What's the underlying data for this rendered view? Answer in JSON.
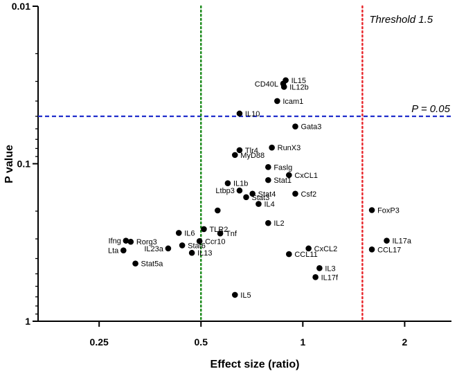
{
  "chart_data": {
    "type": "scatter",
    "xlabel": "Effect size (ratio)",
    "ylabel": "P value",
    "x_scale": "log2",
    "y_scale": "log10",
    "xlim": [
      0.165,
      2.75
    ],
    "ylim": [
      1,
      0.01
    ],
    "x_ticks": [
      {
        "value": 0.25,
        "label": "0.25"
      },
      {
        "value": 0.5,
        "label": "0.5"
      },
      {
        "value": 1,
        "label": "1"
      },
      {
        "value": 2,
        "label": "2"
      }
    ],
    "y_ticks": [
      {
        "value": 0.01,
        "label": "0.01"
      },
      {
        "value": 0.1,
        "label": "0.1"
      },
      {
        "value": 1,
        "label": "1"
      }
    ],
    "reference_lines": [
      {
        "name": "p-threshold",
        "orientation": "horizontal",
        "value": 0.05,
        "color": "#1f2dcc",
        "label": "P = 0.05"
      },
      {
        "name": "effect-threshold",
        "orientation": "vertical",
        "value": 1.5,
        "color": "#e8262b",
        "label": "Threshold 1.5"
      },
      {
        "name": "half-ratio",
        "orientation": "vertical",
        "value": 0.5,
        "color": "#1a8a1a",
        "label": ""
      }
    ],
    "points": [
      {
        "label": "IL15",
        "x": 0.89,
        "y": 0.0295,
        "anchor": "start"
      },
      {
        "label": "CD40L",
        "x": 0.875,
        "y": 0.031,
        "anchor": "end"
      },
      {
        "label": "IL12b",
        "x": 0.88,
        "y": 0.0325,
        "anchor": "start"
      },
      {
        "label": "Icam1",
        "x": 0.84,
        "y": 0.04,
        "anchor": "start"
      },
      {
        "label": "IL10",
        "x": 0.65,
        "y": 0.048,
        "anchor": "start"
      },
      {
        "label": "Gata3",
        "x": 0.95,
        "y": 0.058,
        "anchor": "start"
      },
      {
        "label": "Tlr4",
        "x": 0.65,
        "y": 0.082,
        "anchor": "start"
      },
      {
        "label": "RunX3",
        "x": 0.81,
        "y": 0.079,
        "anchor": "start"
      },
      {
        "label": "MyD88",
        "x": 0.63,
        "y": 0.088,
        "anchor": "start"
      },
      {
        "label": "Faslg",
        "x": 0.79,
        "y": 0.105,
        "anchor": "start"
      },
      {
        "label": "CxCL1",
        "x": 0.91,
        "y": 0.118,
        "anchor": "start"
      },
      {
        "label": "Stat1",
        "x": 0.79,
        "y": 0.127,
        "anchor": "start"
      },
      {
        "label": "IL1b",
        "x": 0.6,
        "y": 0.133,
        "anchor": "start"
      },
      {
        "label": "Ltbp3",
        "x": 0.65,
        "y": 0.148,
        "anchor": "end"
      },
      {
        "label": "Stat4",
        "x": 0.71,
        "y": 0.155,
        "anchor": "start"
      },
      {
        "label": "Csf2",
        "x": 0.95,
        "y": 0.155,
        "anchor": "start"
      },
      {
        "label": "Stat3",
        "x": 0.68,
        "y": 0.163,
        "anchor": "start"
      },
      {
        "label": "IL4",
        "x": 0.74,
        "y": 0.18,
        "anchor": "start"
      },
      {
        "label": "",
        "x": 0.56,
        "y": 0.198,
        "anchor": "start"
      },
      {
        "label": "IL2",
        "x": 0.79,
        "y": 0.238,
        "anchor": "start"
      },
      {
        "label": "TLR2",
        "x": 0.51,
        "y": 0.26,
        "anchor": "start"
      },
      {
        "label": "IL6",
        "x": 0.43,
        "y": 0.275,
        "anchor": "start"
      },
      {
        "label": "Tnf",
        "x": 0.57,
        "y": 0.277,
        "anchor": "start"
      },
      {
        "label": "Ifng",
        "x": 0.3,
        "y": 0.308,
        "anchor": "end"
      },
      {
        "label": "Rorg3",
        "x": 0.31,
        "y": 0.313,
        "anchor": "start"
      },
      {
        "label": "Ccr10",
        "x": 0.495,
        "y": 0.31,
        "anchor": "start"
      },
      {
        "label": "Stat6",
        "x": 0.44,
        "y": 0.33,
        "anchor": "start"
      },
      {
        "label": "IL23a",
        "x": 0.4,
        "y": 0.345,
        "anchor": "end"
      },
      {
        "label": "Lta",
        "x": 0.295,
        "y": 0.355,
        "anchor": "end"
      },
      {
        "label": "IL13",
        "x": 0.47,
        "y": 0.368,
        "anchor": "start"
      },
      {
        "label": "Stat5a",
        "x": 0.32,
        "y": 0.43,
        "anchor": "start"
      },
      {
        "label": "IL5",
        "x": 0.63,
        "y": 0.68,
        "anchor": "start"
      },
      {
        "label": "CxCL2",
        "x": 1.04,
        "y": 0.345,
        "anchor": "start"
      },
      {
        "label": "CCL11",
        "x": 0.91,
        "y": 0.375,
        "anchor": "start"
      },
      {
        "label": "IL3",
        "x": 1.12,
        "y": 0.46,
        "anchor": "start"
      },
      {
        "label": "IL17f",
        "x": 1.09,
        "y": 0.525,
        "anchor": "start"
      },
      {
        "label": "FoxP3",
        "x": 1.6,
        "y": 0.197,
        "anchor": "start"
      },
      {
        "label": "IL17a",
        "x": 1.77,
        "y": 0.308,
        "anchor": "start"
      },
      {
        "label": "CCL17",
        "x": 1.6,
        "y": 0.35,
        "anchor": "start"
      }
    ]
  }
}
